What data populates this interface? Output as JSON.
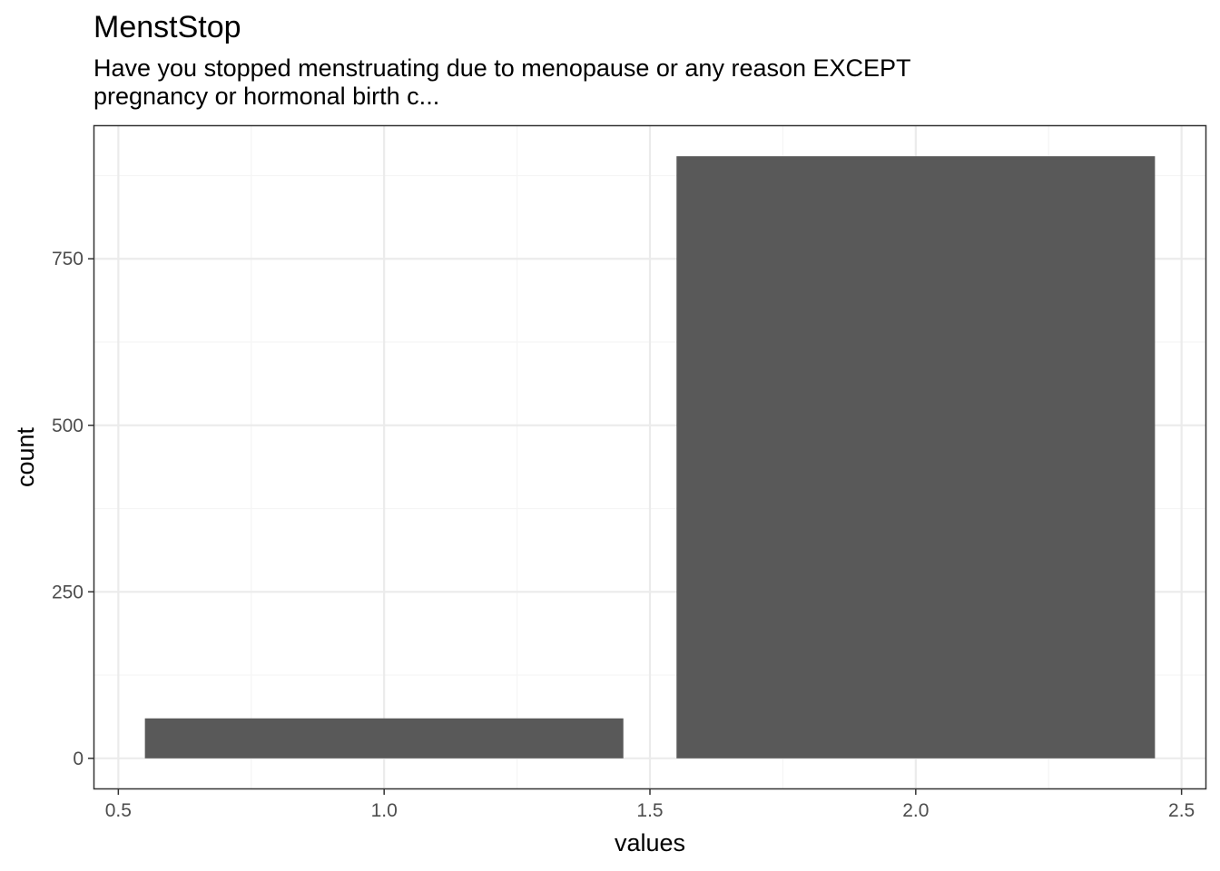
{
  "chart_data": {
    "type": "bar",
    "title": "MenstStop",
    "subtitle_lines": [
      "Have you stopped menstruating due to menopause or any reason EXCEPT",
      "pregnancy or hormonal birth c..."
    ],
    "xlabel": "values",
    "ylabel": "count",
    "x": [
      1,
      2
    ],
    "values": [
      60,
      904
    ],
    "bar_width": 0.9,
    "xlim": [
      0.455,
      2.545
    ],
    "ylim": [
      -45.2,
      949.2
    ],
    "x_ticks": [
      0.5,
      1.0,
      1.5,
      2.0,
      2.5
    ],
    "x_tick_labels": [
      "0.5",
      "1.0",
      "1.5",
      "2.0",
      "2.5"
    ],
    "y_ticks": [
      0,
      250,
      500,
      750
    ],
    "y_tick_labels": [
      "0",
      "250",
      "500",
      "750"
    ],
    "grid": true,
    "colors": {
      "bar": "#595959",
      "grid_major": "#ebebeb",
      "grid_minor": "#f5f5f5",
      "panel_border": "#333333",
      "tick": "#333333"
    }
  }
}
